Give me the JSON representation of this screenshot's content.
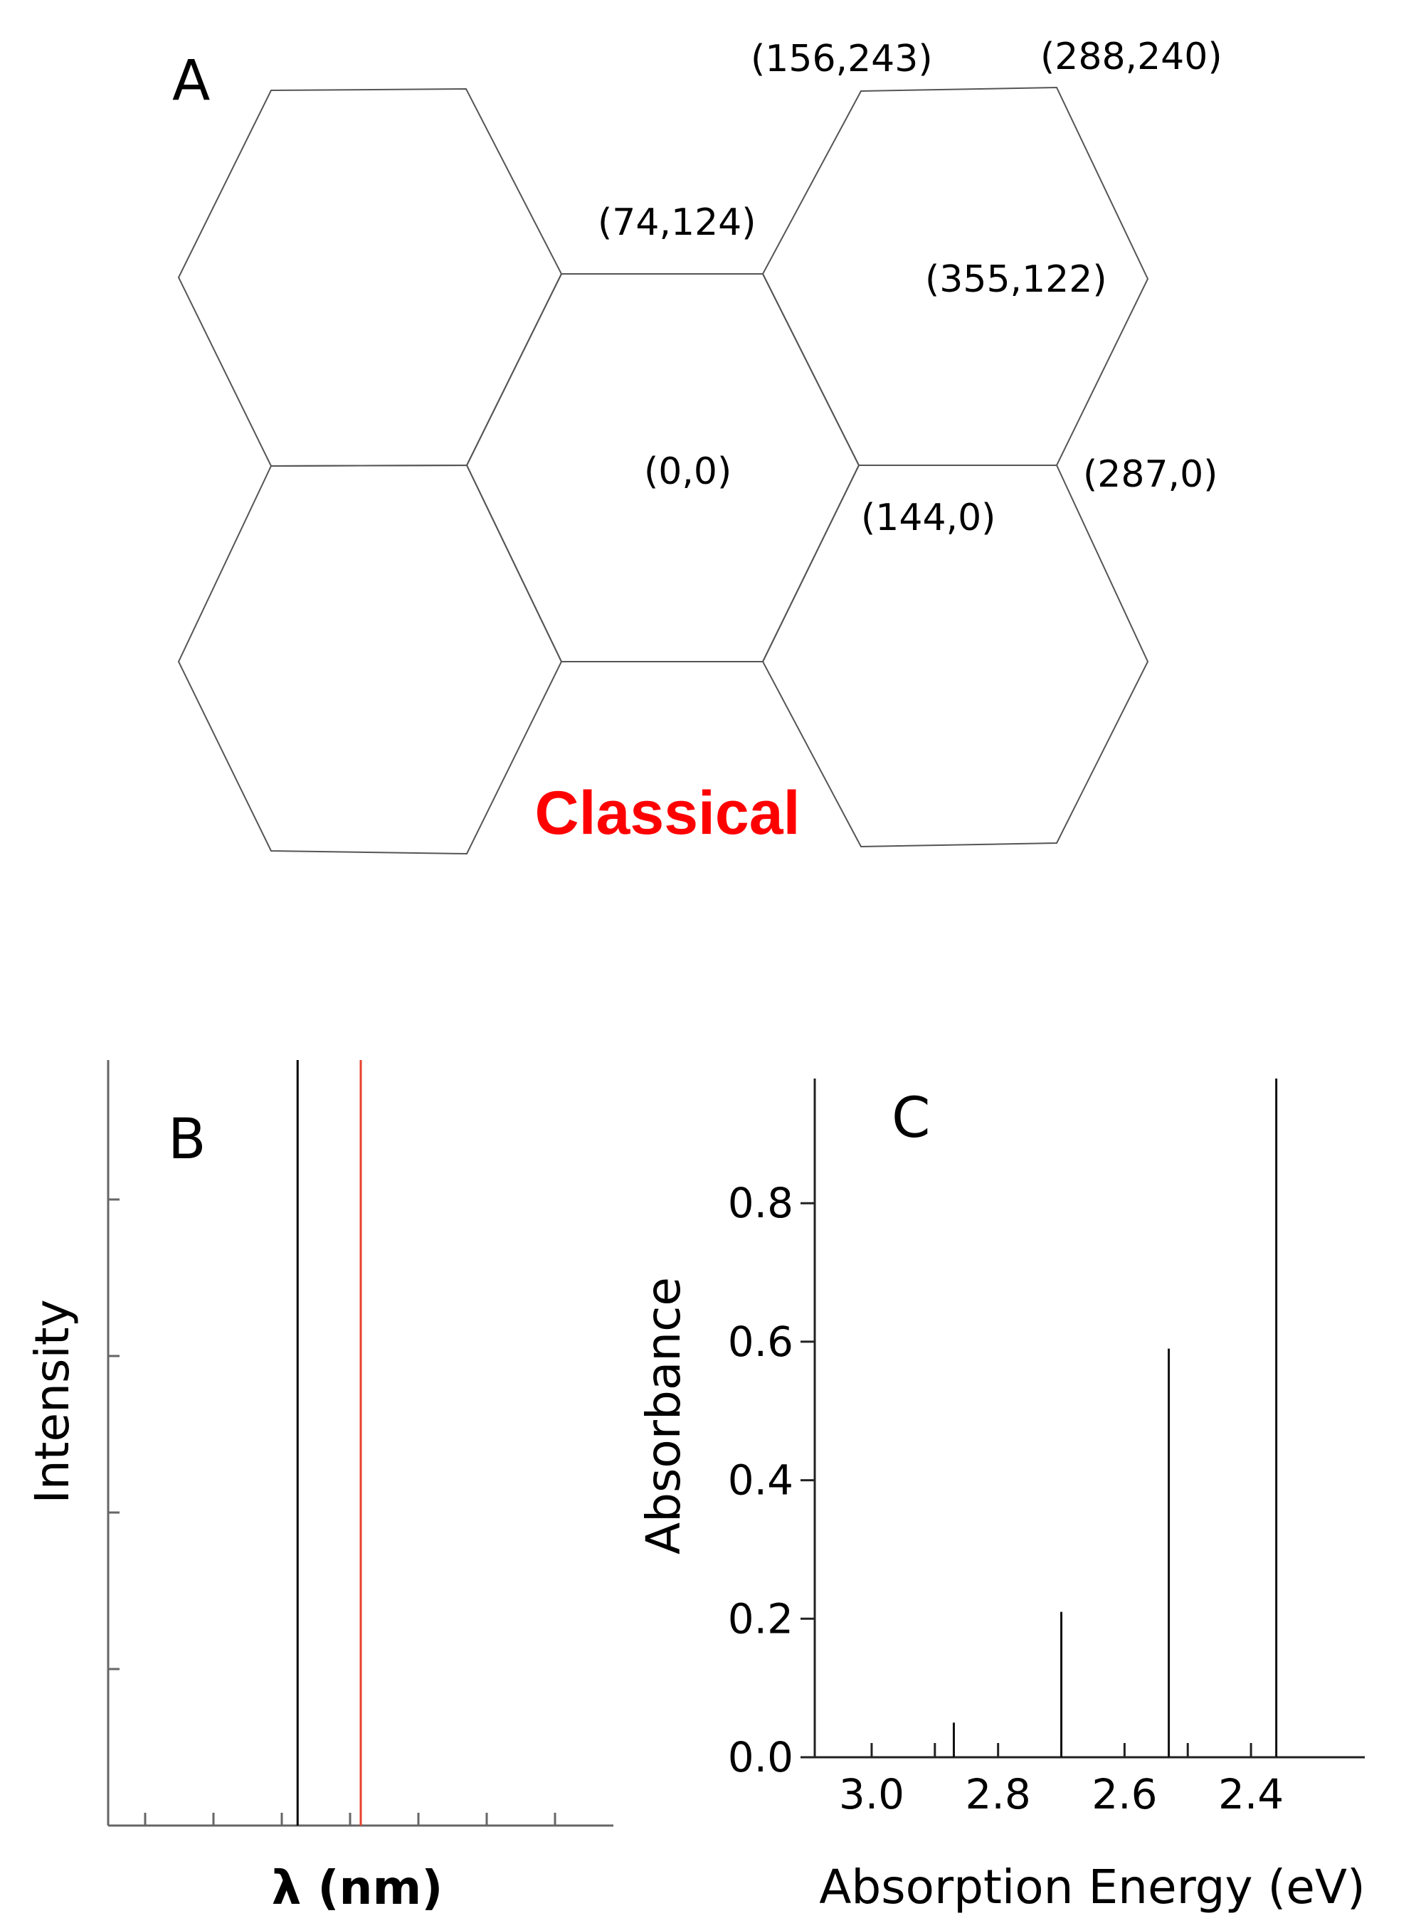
{
  "panel_a": {
    "letter": "A",
    "tag": "Classical",
    "tag_color": "#ff0000",
    "coordinates": [
      "(156,243)",
      "(288,240)",
      "(74,124)",
      "(355,122)",
      "(0,0)",
      "(287,0)",
      "(144,0)"
    ]
  },
  "chart_data": [
    {
      "panel": "B",
      "type": "line",
      "xlabel": "λ (nm)",
      "ylabel": "Intensity",
      "xlim": [
        0,
        1
      ],
      "ylim": [
        0,
        1
      ],
      "x_tick_count": 7,
      "y_tick_count": 4,
      "tick_labels": "none",
      "series": [
        {
          "x": 0.375,
          "y": 1.0,
          "color": "#000000"
        },
        {
          "x": 0.5,
          "y": 1.0,
          "color": "#e8412f"
        }
      ],
      "grid": false
    },
    {
      "panel": "C",
      "type": "bar",
      "xlabel": "Absorption Energy (eV)",
      "ylabel": "Absorbance",
      "xlim": [
        3.09,
        2.22
      ],
      "ylim": [
        0,
        0.98
      ],
      "x_reversed": true,
      "xticks": [
        "3.0",
        "2.8",
        "2.6",
        "2.4"
      ],
      "yticks": [
        "0.0",
        "0.2",
        "0.4",
        "0.6",
        "0.8"
      ],
      "x_minor_ticks": [
        3.0,
        2.9,
        2.8,
        2.7,
        2.6,
        2.5,
        2.4
      ],
      "x": [
        2.87,
        2.7,
        2.53,
        2.36
      ],
      "values": [
        0.05,
        0.21,
        0.59,
        0.98
      ],
      "grid": false
    }
  ]
}
